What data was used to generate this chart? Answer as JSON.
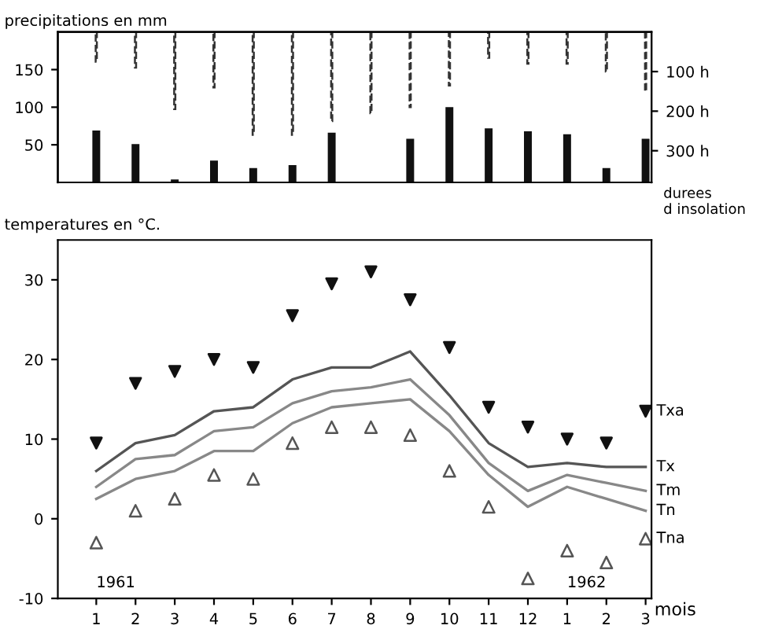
{
  "chart_data": [
    {
      "type": "bar",
      "ylabel": "precipitations en mm",
      "y2label": "durees\nd insolation",
      "categories": [
        null,
        null,
        null,
        null,
        null,
        null,
        null,
        null,
        null,
        null,
        null,
        null,
        null,
        null,
        null
      ],
      "ylim": [
        0,
        200
      ],
      "yticks": [
        50,
        100,
        150
      ],
      "y2lim": [
        380,
        0
      ],
      "y2ticks": [
        {
          "value": 100,
          "label": "100 h"
        },
        {
          "value": 200,
          "label": "200 h"
        },
        {
          "value": 300,
          "label": "300 h"
        }
      ],
      "series": [
        {
          "color": "#111111",
          "values": [
            69,
            51,
            4,
            29,
            19,
            23,
            66,
            1,
            58,
            100,
            72,
            68,
            64,
            19,
            58
          ]
        },
        {
          "type": "bar",
          "axis": "y2",
          "color": "#333333",
          "line_style": "dashed",
          "values": [
            75,
            90,
            195,
            140,
            260,
            260,
            225,
            205,
            190,
            135,
            65,
            80,
            80,
            100,
            150
          ]
        }
      ],
      "legend": false,
      "grid": false
    },
    {
      "type": "line",
      "ylabel": "temperatures en °C.",
      "xlabel": "mois",
      "categories": [
        "1",
        "2",
        "3",
        "4",
        "5",
        "6",
        "7",
        "8",
        "9",
        "10",
        "11",
        "12",
        "1",
        "2",
        "3"
      ],
      "ylim": [
        -10,
        35
      ],
      "yticks": [
        -10,
        0,
        10,
        20,
        30
      ],
      "series": [
        {
          "name": "Txa",
          "type": "scatter",
          "marker": "triangle_down",
          "color": "#111111",
          "values": [
            9.5,
            17,
            18.5,
            20,
            19,
            25.5,
            29.5,
            31,
            27.5,
            21.5,
            14,
            11.5,
            10,
            9.5,
            13.5
          ]
        },
        {
          "name": "Tx",
          "color": "#555555",
          "marker": "none",
          "values": [
            6,
            9.5,
            10.5,
            13.5,
            14,
            17.5,
            19,
            19,
            21,
            15.5,
            9.5,
            6.5,
            7,
            6.5,
            6.5
          ]
        },
        {
          "name": "Tm",
          "color": "#888888",
          "marker": "none",
          "values": [
            4,
            7.5,
            8,
            11,
            11.5,
            14.5,
            16,
            16.5,
            17.5,
            13,
            7,
            3.5,
            5.5,
            4.5,
            3.5
          ]
        },
        {
          "name": "Tn",
          "color": "#888888",
          "marker": "none",
          "values": [
            2.5,
            5,
            6,
            8.5,
            8.5,
            12,
            14,
            14.5,
            15,
            11,
            5.5,
            1.5,
            4,
            2.5,
            1
          ]
        },
        {
          "name": "Tna",
          "type": "scatter",
          "marker": "triangle",
          "color": "#555555",
          "values": [
            -3,
            1,
            2.5,
            5.5,
            5,
            9.5,
            11.5,
            11.5,
            10.5,
            6,
            1.5,
            -7.5,
            -4,
            -5.5,
            -2.5
          ]
        }
      ],
      "annotations": [
        "1961",
        "1962"
      ],
      "legend": false,
      "grid": false
    }
  ]
}
